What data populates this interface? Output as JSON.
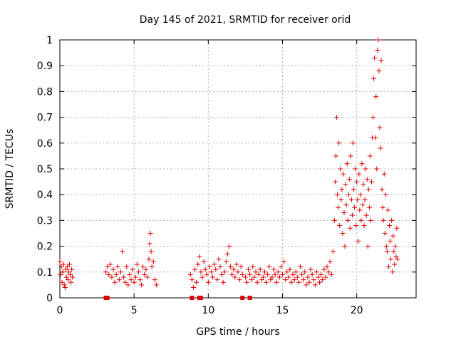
{
  "chart_data": {
    "type": "scatter",
    "title": "Day 145 of 2021, SRMTID for receiver orid",
    "xlabel": "GPS time / hours",
    "ylabel": "SRMTID / TECUs",
    "xlim": [
      0,
      24
    ],
    "ylim": [
      0,
      1
    ],
    "xticks": [
      0,
      5,
      10,
      15,
      20
    ],
    "xtick_labels": [
      "0",
      "5",
      "10",
      "15",
      "20"
    ],
    "yticks": [
      0,
      0.1,
      0.2,
      0.3,
      0.4,
      0.5,
      0.6,
      0.7,
      0.8,
      0.9,
      1
    ],
    "ytick_labels": [
      "0",
      "0.1",
      "0.2",
      "0.3",
      "0.4",
      "0.5",
      "0.6",
      "0.7",
      "0.8",
      "0.9",
      "1"
    ],
    "grid": true,
    "marker": "+",
    "color": "#e00000",
    "series": [
      {
        "name": "SRMTID",
        "x": [
          0.0,
          0.05,
          0.1,
          0.15,
          0.2,
          0.25,
          0.3,
          0.35,
          0.4,
          0.45,
          0.5,
          0.55,
          0.6,
          0.65,
          0.7,
          0.75,
          0.8,
          0.85,
          3.1,
          3.2,
          3.3,
          3.4,
          3.5,
          3.6,
          3.7,
          3.8,
          3.9,
          4.0,
          4.1,
          4.2,
          4.3,
          4.4,
          4.5,
          4.6,
          4.7,
          4.8,
          4.9,
          5.0,
          5.1,
          5.2,
          5.3,
          5.4,
          5.5,
          5.6,
          5.7,
          5.8,
          5.9,
          6.0,
          6.05,
          6.1,
          6.15,
          6.2,
          6.3,
          6.4,
          6.5,
          8.8,
          8.9,
          9.0,
          9.1,
          9.2,
          9.3,
          9.4,
          9.5,
          9.6,
          9.7,
          9.8,
          9.9,
          10.0,
          10.1,
          10.2,
          10.3,
          10.4,
          10.5,
          10.6,
          10.7,
          10.8,
          10.9,
          11.0,
          11.1,
          11.2,
          11.3,
          11.4,
          11.5,
          11.6,
          11.7,
          11.8,
          11.9,
          12.0,
          12.1,
          12.2,
          12.3,
          12.5,
          12.6,
          12.7,
          12.8,
          12.9,
          13.0,
          13.1,
          13.2,
          13.3,
          13.4,
          13.5,
          13.6,
          13.7,
          13.8,
          13.9,
          14.0,
          14.1,
          14.2,
          14.3,
          14.4,
          14.5,
          14.6,
          14.7,
          14.8,
          14.9,
          15.0,
          15.1,
          15.2,
          15.3,
          15.4,
          15.5,
          15.6,
          15.7,
          15.8,
          15.9,
          16.0,
          16.1,
          16.2,
          16.3,
          16.4,
          16.5,
          16.6,
          16.7,
          16.8,
          16.9,
          17.0,
          17.1,
          17.2,
          17.3,
          17.4,
          17.5,
          17.6,
          17.7,
          17.8,
          17.9,
          18.0,
          18.1,
          18.2,
          18.3,
          18.4,
          18.5,
          18.55,
          18.6,
          18.65,
          18.7,
          18.75,
          18.8,
          18.85,
          18.9,
          18.95,
          19.0,
          19.05,
          19.1,
          19.15,
          19.2,
          19.25,
          19.3,
          19.35,
          19.4,
          19.45,
          19.5,
          19.55,
          19.6,
          19.65,
          19.7,
          19.75,
          19.8,
          19.85,
          19.9,
          19.95,
          20.0,
          20.05,
          20.1,
          20.15,
          20.2,
          20.25,
          20.3,
          20.35,
          20.4,
          20.45,
          20.5,
          20.55,
          20.6,
          20.65,
          20.7,
          20.75,
          20.8,
          20.85,
          20.9,
          20.95,
          21.0,
          21.05,
          21.1,
          21.15,
          21.2,
          21.25,
          21.3,
          21.35,
          21.4,
          21.45,
          21.5,
          21.55,
          21.6,
          21.65,
          21.7,
          21.75,
          21.8,
          21.85,
          21.9,
          21.95,
          22.0,
          22.05,
          22.1,
          22.15,
          22.2,
          22.25,
          22.3,
          22.35,
          22.4,
          22.45,
          22.5,
          22.55,
          22.6,
          22.65,
          22.7,
          22.75
        ],
        "y": [
          0.14,
          0.09,
          0.12,
          0.06,
          0.1,
          0.13,
          0.05,
          0.04,
          0.11,
          0.08,
          0.12,
          0.07,
          0.1,
          0.13,
          0.09,
          0.06,
          0.11,
          0.08,
          0.1,
          0.12,
          0.09,
          0.13,
          0.08,
          0.11,
          0.06,
          0.09,
          0.12,
          0.07,
          0.1,
          0.18,
          0.08,
          0.06,
          0.12,
          0.05,
          0.09,
          0.07,
          0.11,
          0.06,
          0.08,
          0.13,
          0.1,
          0.07,
          0.05,
          0.12,
          0.09,
          0.11,
          0.08,
          0.15,
          0.21,
          0.25,
          0.18,
          0.12,
          0.14,
          0.07,
          0.05,
          0.09,
          0.07,
          0.04,
          0.11,
          0.06,
          0.13,
          0.16,
          0.1,
          0.08,
          0.14,
          0.11,
          0.09,
          0.06,
          0.12,
          0.1,
          0.08,
          0.13,
          0.11,
          0.07,
          0.15,
          0.12,
          0.09,
          0.06,
          0.1,
          0.14,
          0.17,
          0.2,
          0.12,
          0.09,
          0.11,
          0.08,
          0.13,
          0.1,
          0.07,
          0.12,
          0.09,
          0.08,
          0.06,
          0.11,
          0.09,
          0.07,
          0.12,
          0.08,
          0.1,
          0.06,
          0.09,
          0.11,
          0.07,
          0.08,
          0.1,
          0.06,
          0.09,
          0.12,
          0.07,
          0.08,
          0.11,
          0.09,
          0.06,
          0.1,
          0.08,
          0.12,
          0.09,
          0.14,
          0.07,
          0.1,
          0.08,
          0.11,
          0.06,
          0.09,
          0.07,
          0.1,
          0.08,
          0.06,
          0.12,
          0.09,
          0.07,
          0.1,
          0.05,
          0.08,
          0.06,
          0.11,
          0.09,
          0.07,
          0.05,
          0.1,
          0.08,
          0.06,
          0.09,
          0.07,
          0.11,
          0.08,
          0.12,
          0.1,
          0.14,
          0.09,
          0.18,
          0.3,
          0.45,
          0.55,
          0.7,
          0.4,
          0.35,
          0.6,
          0.28,
          0.5,
          0.38,
          0.42,
          0.25,
          0.48,
          0.33,
          0.2,
          0.44,
          0.36,
          0.52,
          0.3,
          0.4,
          0.46,
          0.27,
          0.55,
          0.38,
          0.32,
          0.6,
          0.42,
          0.35,
          0.5,
          0.28,
          0.45,
          0.38,
          0.22,
          0.48,
          0.34,
          0.4,
          0.3,
          0.52,
          0.36,
          0.44,
          0.28,
          0.38,
          0.5,
          0.32,
          0.46,
          0.2,
          0.42,
          0.35,
          0.55,
          0.3,
          0.45,
          0.62,
          0.7,
          0.85,
          0.93,
          0.62,
          0.78,
          0.5,
          0.96,
          1.0,
          0.88,
          0.66,
          0.58,
          0.92,
          0.42,
          0.35,
          0.3,
          0.48,
          0.25,
          0.4,
          0.2,
          0.18,
          0.34,
          0.12,
          0.28,
          0.22,
          0.15,
          0.3,
          0.1,
          0.24,
          0.18,
          0.13,
          0.2,
          0.16,
          0.27,
          0.15
        ]
      }
    ],
    "markers_at_zero_x": [
      3.1,
      3.2,
      8.9,
      9.4,
      9.5,
      12.3,
      12.8
    ]
  }
}
